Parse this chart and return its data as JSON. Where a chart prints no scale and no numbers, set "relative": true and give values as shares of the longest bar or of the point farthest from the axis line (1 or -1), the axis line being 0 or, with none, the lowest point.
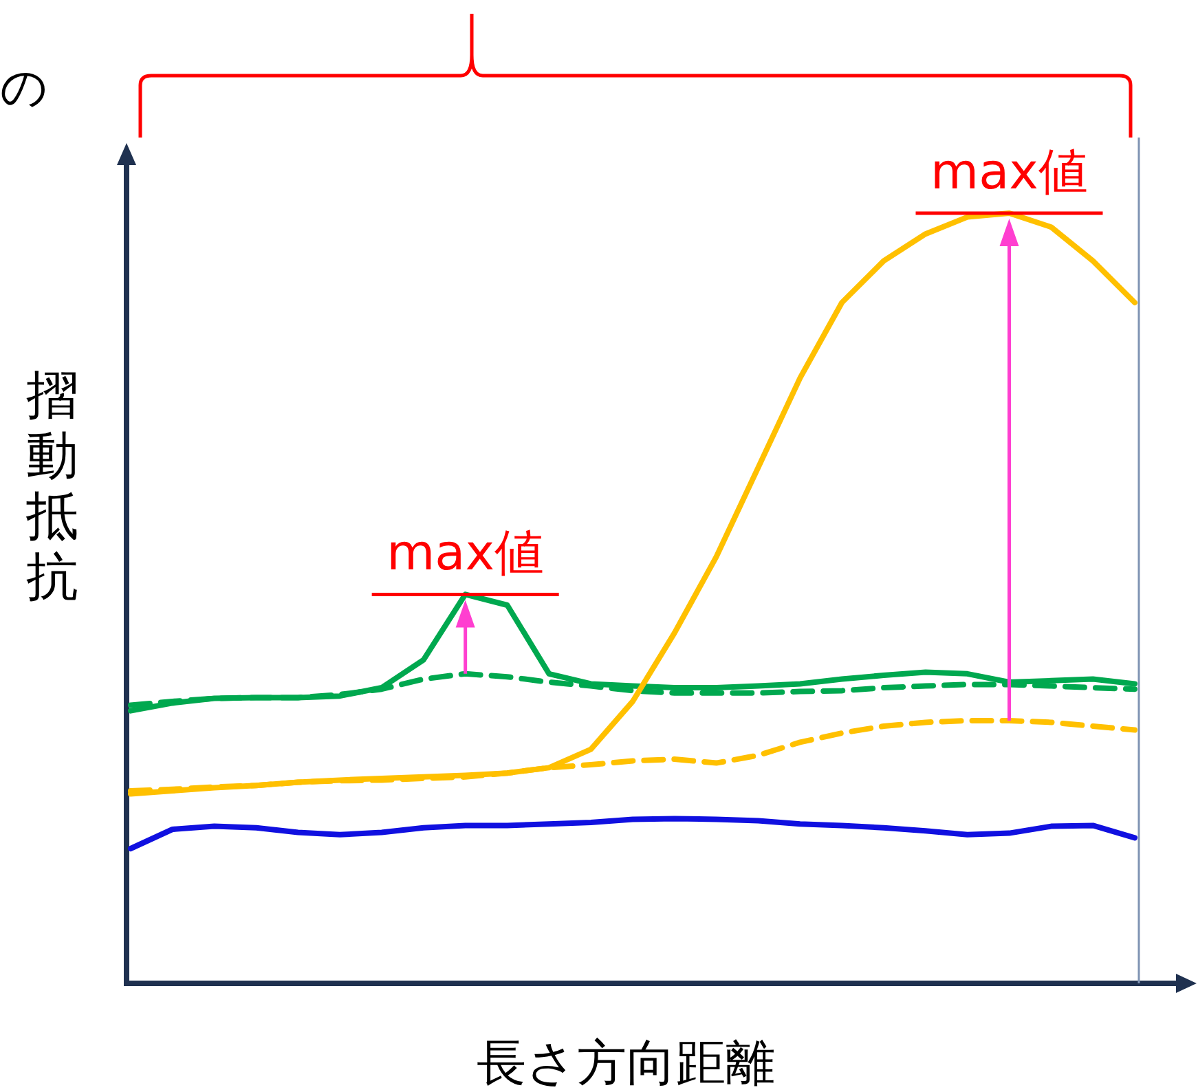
{
  "chart_data": {
    "type": "line",
    "xlabel": "長さ方向距離",
    "ylabel": "摺動抵抗",
    "relative": true,
    "annotations": [
      {
        "text": "max値",
        "y": 0.505
      },
      {
        "text": "max値",
        "y": 1.0
      },
      "の"
    ],
    "categories": [
      null,
      null,
      null,
      null,
      null,
      null,
      null,
      null,
      null,
      null,
      null,
      null,
      null,
      null,
      null,
      null,
      null,
      null,
      null,
      null,
      null,
      null,
      null,
      null,
      null
    ],
    "series": [
      {
        "color": "#00a84f",
        "line_style": "solid",
        "values": [
          0.354,
          0.364,
          0.37,
          0.371,
          0.371,
          0.373,
          0.384,
          0.42,
          0.505,
          0.491,
          0.402,
          0.389,
          0.386,
          0.384,
          0.384,
          0.386,
          0.389,
          0.395,
          0.4,
          0.404,
          0.402,
          0.391,
          0.393,
          0.395,
          0.389
        ]
      },
      {
        "color": "#00a84f",
        "line_style": "dashed",
        "values": [
          0.361,
          0.366,
          0.37,
          0.371,
          0.371,
          0.375,
          0.382,
          0.395,
          0.402,
          0.398,
          0.391,
          0.386,
          0.38,
          0.377,
          0.377,
          0.377,
          0.379,
          0.38,
          0.384,
          0.386,
          0.388,
          0.388,
          0.386,
          0.384,
          0.382
        ]
      },
      {
        "color": "#ffc000",
        "line_style": "solid",
        "values": [
          0.246,
          0.25,
          0.254,
          0.257,
          0.261,
          0.264,
          0.266,
          0.268,
          0.27,
          0.273,
          0.28,
          0.304,
          0.366,
          0.455,
          0.554,
          0.67,
          0.786,
          0.884,
          0.938,
          0.973,
          0.995,
          1.0,
          0.982,
          0.938,
          0.884
        ]
      },
      {
        "color": "#ffc000",
        "line_style": "dashed",
        "values": [
          0.25,
          0.252,
          0.255,
          0.257,
          0.261,
          0.263,
          0.264,
          0.266,
          0.268,
          0.273,
          0.28,
          0.284,
          0.289,
          0.291,
          0.286,
          0.296,
          0.313,
          0.325,
          0.334,
          0.339,
          0.341,
          0.341,
          0.339,
          0.334,
          0.329
        ]
      },
      {
        "color": "#1010e0",
        "line_style": "solid",
        "values": [
          0.175,
          0.2,
          0.204,
          0.202,
          0.196,
          0.193,
          0.196,
          0.202,
          0.205,
          0.205,
          0.207,
          0.209,
          0.213,
          0.214,
          0.213,
          0.211,
          0.207,
          0.205,
          0.202,
          0.198,
          0.193,
          0.195,
          0.204,
          0.205,
          0.189
        ]
      }
    ]
  }
}
